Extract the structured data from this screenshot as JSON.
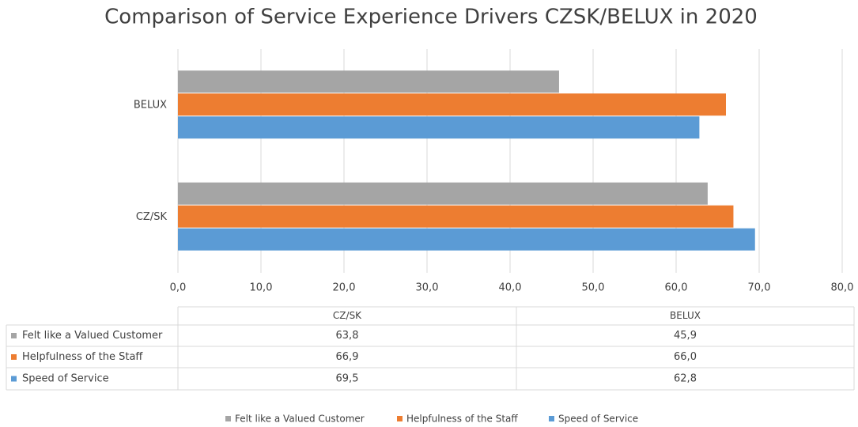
{
  "chart_data": {
    "type": "bar",
    "orientation": "horizontal",
    "title": "Comparison of Service Experience Drivers CZSK/BELUX in 2020",
    "categories": [
      "CZ/SK",
      "BELUX"
    ],
    "series": [
      {
        "name": "Felt like a Valued Customer",
        "color": "#a5a5a5",
        "values": [
          63.8,
          45.9
        ],
        "value_labels": [
          "63,8",
          "45,9"
        ]
      },
      {
        "name": "Helpfulness of the Staff",
        "color": "#ed7d31",
        "values": [
          66.9,
          66.0
        ],
        "value_labels": [
          "66,9",
          "66,0"
        ]
      },
      {
        "name": "Speed of Service",
        "color": "#5b9bd5",
        "values": [
          69.5,
          62.8
        ],
        "value_labels": [
          "69,5",
          "62,8"
        ]
      }
    ],
    "xlim": [
      0,
      80
    ],
    "xticks": [
      {
        "value": 0,
        "label": "0,0"
      },
      {
        "value": 10,
        "label": "10,0"
      },
      {
        "value": 20,
        "label": "20,0"
      },
      {
        "value": 30,
        "label": "30,0"
      },
      {
        "value": 40,
        "label": "40,0"
      },
      {
        "value": 50,
        "label": "50,0"
      },
      {
        "value": 60,
        "label": "60,0"
      },
      {
        "value": 70,
        "label": "70,0"
      },
      {
        "value": 80,
        "label": "80,0"
      }
    ],
    "grid": true,
    "legend": "bottom",
    "data_table": true
  }
}
